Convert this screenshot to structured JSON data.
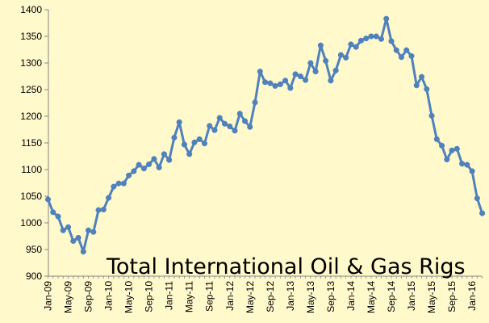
{
  "chart_data": {
    "type": "line",
    "title": "Total International Oil & Gas Rigs",
    "xlabel": "",
    "ylabel": "",
    "ylim": [
      900,
      1400
    ],
    "yticks": [
      900,
      950,
      1000,
      1050,
      1100,
      1150,
      1200,
      1250,
      1300,
      1350,
      1400
    ],
    "xtick_labels": [
      "Jan-09",
      "May-09",
      "Sep-09",
      "Jan-10",
      "May-10",
      "Sep-10",
      "Jan-11",
      "May-11",
      "Sep-11",
      "Jan-12",
      "May-12",
      "Sep-12",
      "Jan-13",
      "May-13",
      "Sep-13",
      "Jan-14",
      "May-14",
      "Sep-14",
      "Jan-15",
      "May-15",
      "Sep-15",
      "Jan-16"
    ],
    "xtick_step_months": 4,
    "grid": false,
    "legend": "none",
    "series_color": "#4F81BD",
    "series": [
      {
        "values": [
          1044,
          1020,
          1012,
          986,
          992,
          966,
          972,
          946,
          986,
          983,
          1024,
          1025,
          1047,
          1068,
          1074,
          1074,
          1089,
          1097,
          1109,
          1102,
          1110,
          1120,
          1104,
          1129,
          1118,
          1160,
          1189,
          1147,
          1129,
          1151,
          1157,
          1149,
          1182,
          1174,
          1197,
          1186,
          1181,
          1173,
          1205,
          1191,
          1180,
          1226,
          1284,
          1264,
          1262,
          1257,
          1260,
          1267,
          1253,
          1279,
          1275,
          1268,
          1300,
          1284,
          1333,
          1304,
          1267,
          1286,
          1315,
          1310,
          1335,
          1330,
          1342,
          1346,
          1350,
          1350,
          1345,
          1383,
          1341,
          1324,
          1311,
          1324,
          1313,
          1258,
          1274,
          1251,
          1201,
          1157,
          1145,
          1119,
          1136,
          1139,
          1111,
          1109,
          1097,
          1046,
          1018
        ]
      }
    ]
  }
}
